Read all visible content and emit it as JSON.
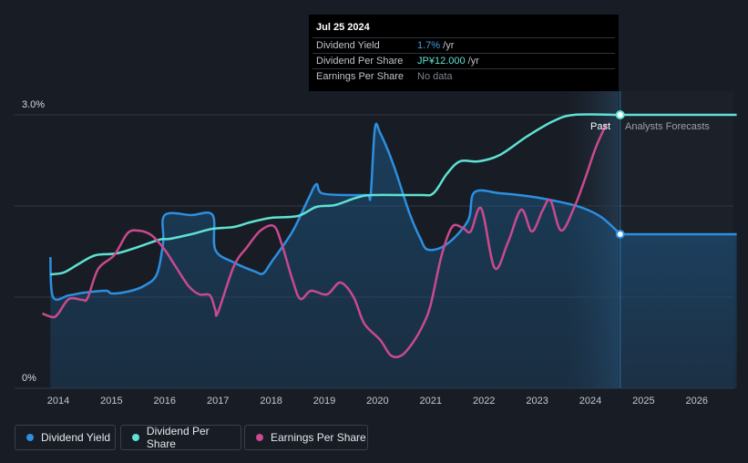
{
  "tooltip": {
    "date": "Jul 25 2024",
    "rows": [
      {
        "label": "Dividend Yield",
        "value": "1.7%",
        "unit": " /yr"
      },
      {
        "label": "Dividend Per Share",
        "value": "JP¥12.000",
        "unit": " /yr"
      },
      {
        "label": "Earnings Per Share",
        "value": "No data",
        "unit": ""
      }
    ]
  },
  "labels": {
    "past": "Past",
    "forecast": "Analysts Forecasts"
  },
  "legend": [
    {
      "label": "Dividend Yield",
      "color": "#2d8fe0"
    },
    {
      "label": "Dividend Per Share",
      "color": "#5fe1d3"
    },
    {
      "label": "Earnings Per Share",
      "color": "#c94a8e"
    }
  ],
  "chart_data": {
    "type": "line",
    "x_ticks": [
      "2014",
      "2015",
      "2016",
      "2017",
      "2018",
      "2019",
      "2020",
      "2021",
      "2022",
      "2023",
      "2024",
      "2025",
      "2026"
    ],
    "y_tick_labels": [
      {
        "value": 3.0,
        "label": "3.0%"
      },
      {
        "value": 0,
        "label": "0%"
      }
    ],
    "ylim": [
      0,
      3.0
    ],
    "xlim": [
      2013.7,
      2026.75
    ],
    "past_end": 2024.56,
    "series": [
      {
        "name": "Dividend Yield",
        "color": "#2d8fe0",
        "area": true,
        "points": [
          [
            2013.85,
            1.44
          ],
          [
            2013.9,
            1.0
          ],
          [
            2014.2,
            1.02
          ],
          [
            2014.5,
            1.05
          ],
          [
            2014.9,
            1.07
          ],
          [
            2015.0,
            1.04
          ],
          [
            2015.3,
            1.06
          ],
          [
            2015.6,
            1.12
          ],
          [
            2015.85,
            1.25
          ],
          [
            2015.97,
            1.6
          ],
          [
            2016.0,
            1.9
          ],
          [
            2016.5,
            1.9
          ],
          [
            2016.9,
            1.9
          ],
          [
            2016.95,
            1.52
          ],
          [
            2017.3,
            1.38
          ],
          [
            2017.7,
            1.28
          ],
          [
            2017.85,
            1.26
          ],
          [
            2018.0,
            1.38
          ],
          [
            2018.4,
            1.72
          ],
          [
            2018.7,
            2.08
          ],
          [
            2018.85,
            2.24
          ],
          [
            2018.95,
            2.14
          ],
          [
            2019.4,
            2.12
          ],
          [
            2019.8,
            2.12
          ],
          [
            2019.87,
            2.12
          ],
          [
            2019.95,
            2.85
          ],
          [
            2020.05,
            2.8
          ],
          [
            2020.3,
            2.45
          ],
          [
            2020.6,
            1.92
          ],
          [
            2020.8,
            1.65
          ],
          [
            2020.95,
            1.52
          ],
          [
            2021.3,
            1.58
          ],
          [
            2021.7,
            1.84
          ],
          [
            2021.82,
            2.15
          ],
          [
            2022.3,
            2.14
          ],
          [
            2022.8,
            2.11
          ],
          [
            2023.3,
            2.06
          ],
          [
            2023.8,
            1.99
          ],
          [
            2024.2,
            1.88
          ],
          [
            2024.56,
            1.69
          ]
        ]
      },
      {
        "name": "Dividend Yield Forecast",
        "color": "#2d8fe0",
        "area": true,
        "points": [
          [
            2024.56,
            1.69
          ],
          [
            2026.75,
            1.69
          ]
        ]
      },
      {
        "name": "Dividend Per Share",
        "color": "#5fe1d3",
        "points": [
          [
            2013.85,
            1.25
          ],
          [
            2014.1,
            1.27
          ],
          [
            2014.4,
            1.37
          ],
          [
            2014.7,
            1.46
          ],
          [
            2015.1,
            1.48
          ],
          [
            2015.5,
            1.55
          ],
          [
            2015.9,
            1.63
          ],
          [
            2016.1,
            1.64
          ],
          [
            2016.5,
            1.69
          ],
          [
            2016.9,
            1.75
          ],
          [
            2017.3,
            1.77
          ],
          [
            2017.6,
            1.82
          ],
          [
            2018.0,
            1.87
          ],
          [
            2018.5,
            1.89
          ],
          [
            2018.85,
            1.99
          ],
          [
            2019.2,
            2.01
          ],
          [
            2019.6,
            2.09
          ],
          [
            2019.9,
            2.12
          ],
          [
            2020.8,
            2.12
          ],
          [
            2021.05,
            2.14
          ],
          [
            2021.3,
            2.35
          ],
          [
            2021.55,
            2.49
          ],
          [
            2021.9,
            2.49
          ],
          [
            2022.3,
            2.56
          ],
          [
            2022.8,
            2.76
          ],
          [
            2023.3,
            2.93
          ],
          [
            2023.7,
            3.0
          ],
          [
            2024.56,
            3.0
          ]
        ]
      },
      {
        "name": "Dividend Per Share Forecast",
        "color": "#5fe1d3",
        "points": [
          [
            2024.56,
            3.0
          ],
          [
            2026.75,
            3.0
          ]
        ]
      },
      {
        "name": "Earnings Per Share",
        "color": "#c94a8e",
        "points": [
          [
            2013.7,
            0.82
          ],
          [
            2013.9,
            0.78
          ],
          [
            2014.0,
            0.82
          ],
          [
            2014.2,
            0.98
          ],
          [
            2014.45,
            0.97
          ],
          [
            2014.55,
            0.99
          ],
          [
            2014.75,
            1.31
          ],
          [
            2015.05,
            1.46
          ],
          [
            2015.3,
            1.7
          ],
          [
            2015.5,
            1.73
          ],
          [
            2015.75,
            1.68
          ],
          [
            2016.0,
            1.52
          ],
          [
            2016.2,
            1.34
          ],
          [
            2016.45,
            1.12
          ],
          [
            2016.65,
            1.03
          ],
          [
            2016.85,
            1.02
          ],
          [
            2016.95,
            0.86
          ],
          [
            2017.0,
            0.83
          ],
          [
            2017.3,
            1.34
          ],
          [
            2017.55,
            1.55
          ],
          [
            2017.8,
            1.73
          ],
          [
            2018.05,
            1.78
          ],
          [
            2018.2,
            1.58
          ],
          [
            2018.4,
            1.19
          ],
          [
            2018.55,
            0.98
          ],
          [
            2018.75,
            1.07
          ],
          [
            2019.05,
            1.03
          ],
          [
            2019.3,
            1.16
          ],
          [
            2019.55,
            1.0
          ],
          [
            2019.75,
            0.71
          ],
          [
            2020.05,
            0.53
          ],
          [
            2020.25,
            0.36
          ],
          [
            2020.45,
            0.36
          ],
          [
            2020.65,
            0.49
          ],
          [
            2020.85,
            0.69
          ],
          [
            2021.0,
            0.92
          ],
          [
            2021.2,
            1.45
          ],
          [
            2021.4,
            1.77
          ],
          [
            2021.6,
            1.76
          ],
          [
            2021.75,
            1.72
          ],
          [
            2021.95,
            1.97
          ],
          [
            2022.2,
            1.32
          ],
          [
            2022.45,
            1.6
          ],
          [
            2022.7,
            1.96
          ],
          [
            2022.9,
            1.72
          ],
          [
            2023.1,
            1.95
          ],
          [
            2023.25,
            2.06
          ],
          [
            2023.45,
            1.73
          ],
          [
            2023.7,
            1.99
          ],
          [
            2023.9,
            2.3
          ],
          [
            2024.1,
            2.64
          ],
          [
            2024.3,
            2.9
          ]
        ]
      }
    ]
  }
}
